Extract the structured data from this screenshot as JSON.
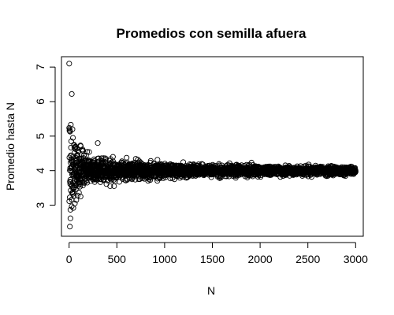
{
  "chart_data": {
    "type": "scatter",
    "title": "Promedios con semilla afuera",
    "xlabel": "N",
    "ylabel": "Promedio hasta N",
    "xlim": [
      -80,
      3080
    ],
    "ylim": [
      2.1,
      7.3
    ],
    "x_ticks": [
      0,
      500,
      1000,
      1500,
      2000,
      2500,
      3000
    ],
    "y_ticks": [
      3,
      4,
      5,
      6,
      7
    ],
    "x_tick_labels": [
      "0",
      "500",
      "1000",
      "1500",
      "2000",
      "2500",
      "3000"
    ],
    "y_tick_labels": [
      "3",
      "4",
      "5",
      "6",
      "7"
    ],
    "grid": false,
    "legend": "none",
    "marker": "open-circle",
    "n_points": 3000,
    "mean": 4.0,
    "highlighted_points": [
      {
        "x": 1,
        "y": 7.1
      },
      {
        "x": 28,
        "y": 6.22
      },
      {
        "x": 8,
        "y": 2.38
      },
      {
        "x": 14,
        "y": 2.62
      },
      {
        "x": 18,
        "y": 5.33
      },
      {
        "x": 35,
        "y": 5.2
      },
      {
        "x": 22,
        "y": 4.85
      },
      {
        "x": 40,
        "y": 4.95
      },
      {
        "x": 52,
        "y": 4.75
      },
      {
        "x": 60,
        "y": 3.05
      },
      {
        "x": 75,
        "y": 3.15
      },
      {
        "x": 95,
        "y": 4.55
      },
      {
        "x": 120,
        "y": 3.25
      },
      {
        "x": 300,
        "y": 4.8
      },
      {
        "x": 430,
        "y": 3.55
      }
    ]
  }
}
